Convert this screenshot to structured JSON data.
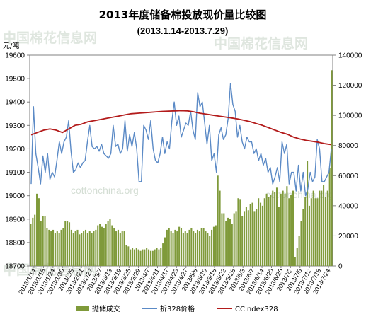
{
  "chart_data": {
    "type": "bar",
    "title": "2013年度储备棉投放现价量比较图",
    "subtitle": "(2013.1.14-2013.7.29)",
    "y_left_unit": "元/吨",
    "y_left_range": [
      18700,
      19600
    ],
    "y_left_ticks": [
      "19600",
      "19500",
      "19400",
      "19300",
      "19200",
      "19100",
      "19000",
      "18900",
      "18800",
      "18700"
    ],
    "y_right_range": [
      0,
      140000
    ],
    "y_right_ticks": [
      "140000",
      "120000",
      "100000",
      "80000",
      "60000",
      "40000",
      "20000",
      "0"
    ],
    "x_ticks": [
      "2013/1/14",
      "2013/1/18",
      "2013/1/24",
      "2013/1/30",
      "2013/2/5",
      "2013/2/21",
      "2013/2/27",
      "2013/3/7",
      "2013/3/13",
      "2013/3/19",
      "2013/3/25",
      "2013/3/29",
      "2013/4/7",
      "2013/4/11",
      "2013/4/17",
      "2013/4/23",
      "2013/4/27",
      "2013/5/6",
      "2013/5/10",
      "2013/5/16",
      "2013/5/22",
      "2013/5/28",
      "2013/6/3",
      "2013/6/7",
      "2013/6/14",
      "2013/6/20",
      "2013/6/26",
      "2013/7/2",
      "2013/7/8",
      "2013/7/12",
      "2013/7/18",
      "2013/7/24"
    ],
    "legend": [
      "抛储成交",
      "折328价格",
      "CCIndex328"
    ],
    "series": [
      {
        "name": "抛储成交",
        "type": "bar",
        "axis": "right",
        "color": "#7f9a3a",
        "values": [
          28000,
          32000,
          34000,
          48000,
          45000,
          30000,
          33000,
          33000,
          25000,
          24000,
          23000,
          24000,
          22000,
          23000,
          22000,
          24000,
          25000,
          30000,
          30000,
          29000,
          24000,
          22000,
          23000,
          24000,
          21000,
          22000,
          23000,
          24000,
          22000,
          23000,
          22000,
          23000,
          24000,
          27000,
          28000,
          26000,
          25000,
          28000,
          30000,
          31000,
          27000,
          25000,
          23000,
          24000,
          22000,
          23000,
          23000,
          14000,
          13000,
          11000,
          12000,
          11000,
          12000,
          11000,
          10000,
          11000,
          11000,
          12000,
          11000,
          10000,
          10000,
          11000,
          12000,
          11000,
          12000,
          15000,
          19000,
          24000,
          25000,
          23000,
          22000,
          24000,
          23000,
          26000,
          25000,
          22000,
          23000,
          22000,
          24000,
          25000,
          23000,
          22000,
          24000,
          23000,
          25000,
          25000,
          23000,
          22000,
          20000,
          24000,
          26000,
          27000,
          60000,
          50000,
          35000,
          35000,
          30000,
          32000,
          31000,
          28000,
          35000,
          36000,
          45000,
          44000,
          33000,
          36000,
          39000,
          37000,
          41000,
          42000,
          36000,
          38000,
          45000,
          42000,
          40000,
          45000,
          48000,
          46000,
          47000,
          50000,
          49000,
          52000,
          39000,
          48000,
          50000,
          48000,
          53000,
          45000,
          47000,
          50000,
          6000,
          12000,
          20000,
          30000,
          38000,
          46000,
          70000,
          40000,
          45000,
          50000,
          45000,
          45000,
          50000,
          50000,
          54000,
          46000,
          50000,
          65000,
          130000
        ]
      },
      {
        "name": "折328价格",
        "type": "line",
        "axis": "left",
        "color": "#5b8ac6",
        "values": [
          19050,
          19380,
          19180,
          19120,
          19050,
          19170,
          19100,
          19180,
          19070,
          19100,
          19080,
          19150,
          19230,
          19180,
          19230,
          19250,
          19320,
          19190,
          19100,
          19110,
          19140,
          19120,
          19140,
          19150,
          19230,
          19300,
          19210,
          19200,
          19210,
          19190,
          19220,
          19180,
          19170,
          19160,
          19180,
          19300,
          19210,
          19220,
          19180,
          19200,
          19320,
          19190,
          19260,
          19210,
          19270,
          19200,
          19060,
          19060,
          19300,
          19280,
          19240,
          19320,
          19200,
          19150,
          19140,
          19180,
          19250,
          19180,
          19230,
          19200,
          19320,
          19400,
          19300,
          19340,
          19250,
          19280,
          19310,
          19300,
          19360,
          19280,
          19240,
          19440,
          19380,
          19400,
          19310,
          19220,
          19300,
          19150,
          19180,
          19100,
          19260,
          19290,
          19240,
          19260,
          19330,
          19480,
          19390,
          19360,
          19250,
          19300,
          19230,
          19200,
          19250,
          19230,
          19230,
          19180,
          19200,
          19150,
          19180,
          19130,
          19160,
          19100,
          19120,
          19050,
          19080,
          19120,
          19060,
          19230,
          19180,
          19220,
          19050,
          19100,
          19100,
          19020,
          19130,
          19020,
          19100,
          19000,
          19030,
          19100,
          19060,
          19080,
          19240,
          19200,
          19060,
          19060,
          19080,
          19100,
          19200
        ]
      },
      {
        "name": "CCIndex328",
        "type": "line",
        "axis": "left",
        "color": "#b31b1b",
        "values": [
          19260,
          19270,
          19280,
          19285,
          19280,
          19270,
          19285,
          19300,
          19305,
          19315,
          19320,
          19325,
          19330,
          19335,
          19340,
          19345,
          19350,
          19352,
          19354,
          19356,
          19358,
          19360,
          19361,
          19362,
          19363,
          19362,
          19358,
          19352,
          19348,
          19344,
          19340,
          19336,
          19332,
          19328,
          19322,
          19316,
          19308,
          19300,
          19290,
          19280,
          19270,
          19262,
          19250,
          19242,
          19236,
          19232,
          19228,
          19222,
          19218
        ]
      }
    ]
  },
  "watermarks": [
    "中国棉花信息网",
    "中国棉花信息网",
    "cottonchina.org",
    "cottonchina.org",
    "中国棉花信息网"
  ]
}
